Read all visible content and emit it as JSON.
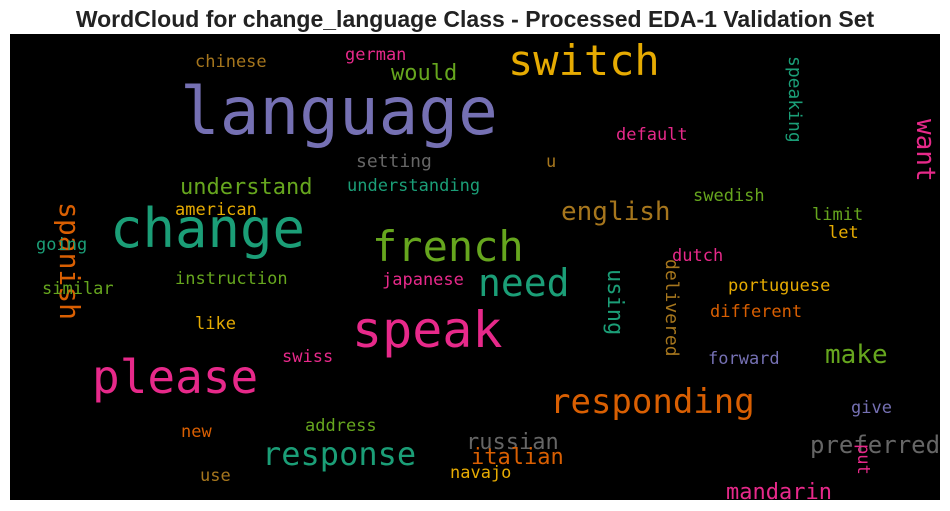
{
  "chart_data": {
    "type": "wordcloud",
    "title": "WordCloud for change_language Class - Processed EDA-1 Validation Set",
    "background": "#000000",
    "palette": "Dark2",
    "words": [
      {
        "text": "language",
        "color": "#7570b3",
        "rank": 1
      },
      {
        "text": "change",
        "color": "#1b9e77",
        "rank": 2
      },
      {
        "text": "speak",
        "color": "#e7298a",
        "rank": 3
      },
      {
        "text": "please",
        "color": "#e7298a",
        "rank": 4
      },
      {
        "text": "switch",
        "color": "#e6ab02",
        "rank": 5
      },
      {
        "text": "french",
        "color": "#66a61e",
        "rank": 6
      },
      {
        "text": "need",
        "color": "#1b9e77",
        "rank": 7
      },
      {
        "text": "responding",
        "color": "#d95f02",
        "rank": 8
      },
      {
        "text": "response",
        "color": "#1b9e77",
        "rank": 9
      },
      {
        "text": "spanish",
        "color": "#d95f02",
        "rank": 10
      },
      {
        "text": "make",
        "color": "#66a61e",
        "rank": 11
      },
      {
        "text": "english",
        "color": "#a6761d",
        "rank": 12
      },
      {
        "text": "preferred",
        "color": "#666666",
        "rank": 13
      },
      {
        "text": "want",
        "color": "#e7298a",
        "rank": 14
      },
      {
        "text": "understand",
        "color": "#66a61e",
        "rank": 15
      },
      {
        "text": "would",
        "color": "#66a61e",
        "rank": 16
      },
      {
        "text": "russian",
        "color": "#666666",
        "rank": 17
      },
      {
        "text": "italian",
        "color": "#d95f02",
        "rank": 18
      },
      {
        "text": "mandarin",
        "color": "#e7298a",
        "rank": 19
      },
      {
        "text": "using",
        "color": "#1b9e77",
        "rank": 20
      },
      {
        "text": "delivered",
        "color": "#a6761d",
        "rank": 21
      },
      {
        "text": "speaking",
        "color": "#1b9e77",
        "rank": 22
      },
      {
        "text": "setting",
        "color": "#666666",
        "rank": 23
      },
      {
        "text": "understanding",
        "color": "#1b9e77",
        "rank": 24
      },
      {
        "text": "default",
        "color": "#e7298a",
        "rank": 25
      },
      {
        "text": "swedish",
        "color": "#66a61e",
        "rank": 26
      },
      {
        "text": "portuguese",
        "color": "#e6ab02",
        "rank": 27
      },
      {
        "text": "different",
        "color": "#d95f02",
        "rank": 28
      },
      {
        "text": "instruction",
        "color": "#66a61e",
        "rank": 29
      },
      {
        "text": "japanese",
        "color": "#e7298a",
        "rank": 30
      },
      {
        "text": "forward",
        "color": "#7570b3",
        "rank": 31
      },
      {
        "text": "address",
        "color": "#66a61e",
        "rank": 32
      },
      {
        "text": "navajo",
        "color": "#e6ab02",
        "rank": 33
      },
      {
        "text": "chinese",
        "color": "#a6761d",
        "rank": 34
      },
      {
        "text": "german",
        "color": "#e7298a",
        "rank": 35
      },
      {
        "text": "american",
        "color": "#e6ab02",
        "rank": 36
      },
      {
        "text": "limit",
        "color": "#66a61e",
        "rank": 37
      },
      {
        "text": "let",
        "color": "#e6ab02",
        "rank": 38
      },
      {
        "text": "dutch",
        "color": "#e7298a",
        "rank": 39
      },
      {
        "text": "going",
        "color": "#1b9e77",
        "rank": 40
      },
      {
        "text": "similar",
        "color": "#66a61e",
        "rank": 41
      },
      {
        "text": "like",
        "color": "#e6ab02",
        "rank": 42
      },
      {
        "text": "swiss",
        "color": "#e7298a",
        "rank": 43
      },
      {
        "text": "new",
        "color": "#d95f02",
        "rank": 44
      },
      {
        "text": "use",
        "color": "#a6761d",
        "rank": 45
      },
      {
        "text": "give",
        "color": "#7570b3",
        "rank": 46
      },
      {
        "text": "put",
        "color": "#e7298a",
        "rank": 47
      },
      {
        "text": "u",
        "color": "#a6761d",
        "rank": 48
      }
    ]
  }
}
